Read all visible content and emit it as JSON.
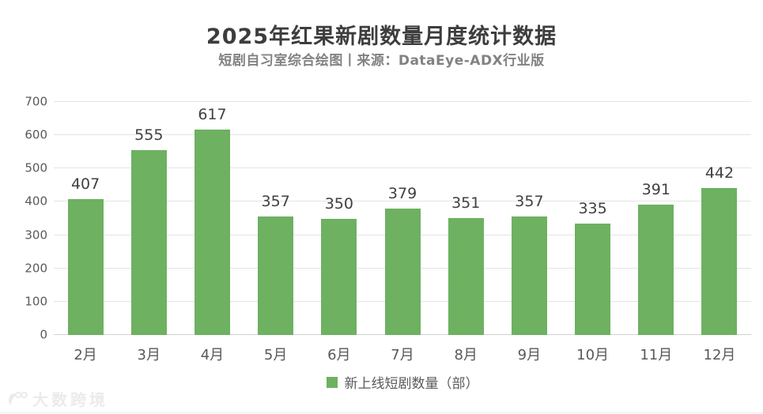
{
  "header": {
    "title": "2025年红果新剧数量月度统计数据",
    "subtitle": "短剧自习室综合绘图丨来源：DataEye-ADX行业版"
  },
  "chart_data": {
    "type": "bar",
    "title": "2025年红果新剧数量月度统计数据",
    "subtitle": "短剧自习室综合绘图丨来源：DataEye-ADX行业版",
    "categories": [
      "2月",
      "3月",
      "4月",
      "5月",
      "6月",
      "7月",
      "8月",
      "9月",
      "10月",
      "11月",
      "12月"
    ],
    "values": [
      407,
      555,
      617,
      357,
      350,
      379,
      351,
      357,
      335,
      391,
      442
    ],
    "series_name": "新上线短剧数量（部）",
    "xlabel": "",
    "ylabel": "",
    "ylim": [
      0,
      700
    ],
    "yticks": [
      0,
      100,
      200,
      300,
      400,
      500,
      600,
      700
    ],
    "grid": true,
    "legend_position": "bottom",
    "bar_color": "#6db161",
    "data_labels": true
  },
  "legend": {
    "label": "新上线短剧数量（部）"
  },
  "watermark": {
    "text": "大数跨境"
  },
  "colors": {
    "bar": "#6db161",
    "title_text": "#3d3d3d",
    "subtitle_text": "#828282",
    "axis_text": "#595959",
    "value_label_text": "#404040",
    "gridline": "#e4e4e4",
    "baseline": "#d2d2d2",
    "watermark_text": "#ebebeb",
    "background": "#ffffff"
  }
}
